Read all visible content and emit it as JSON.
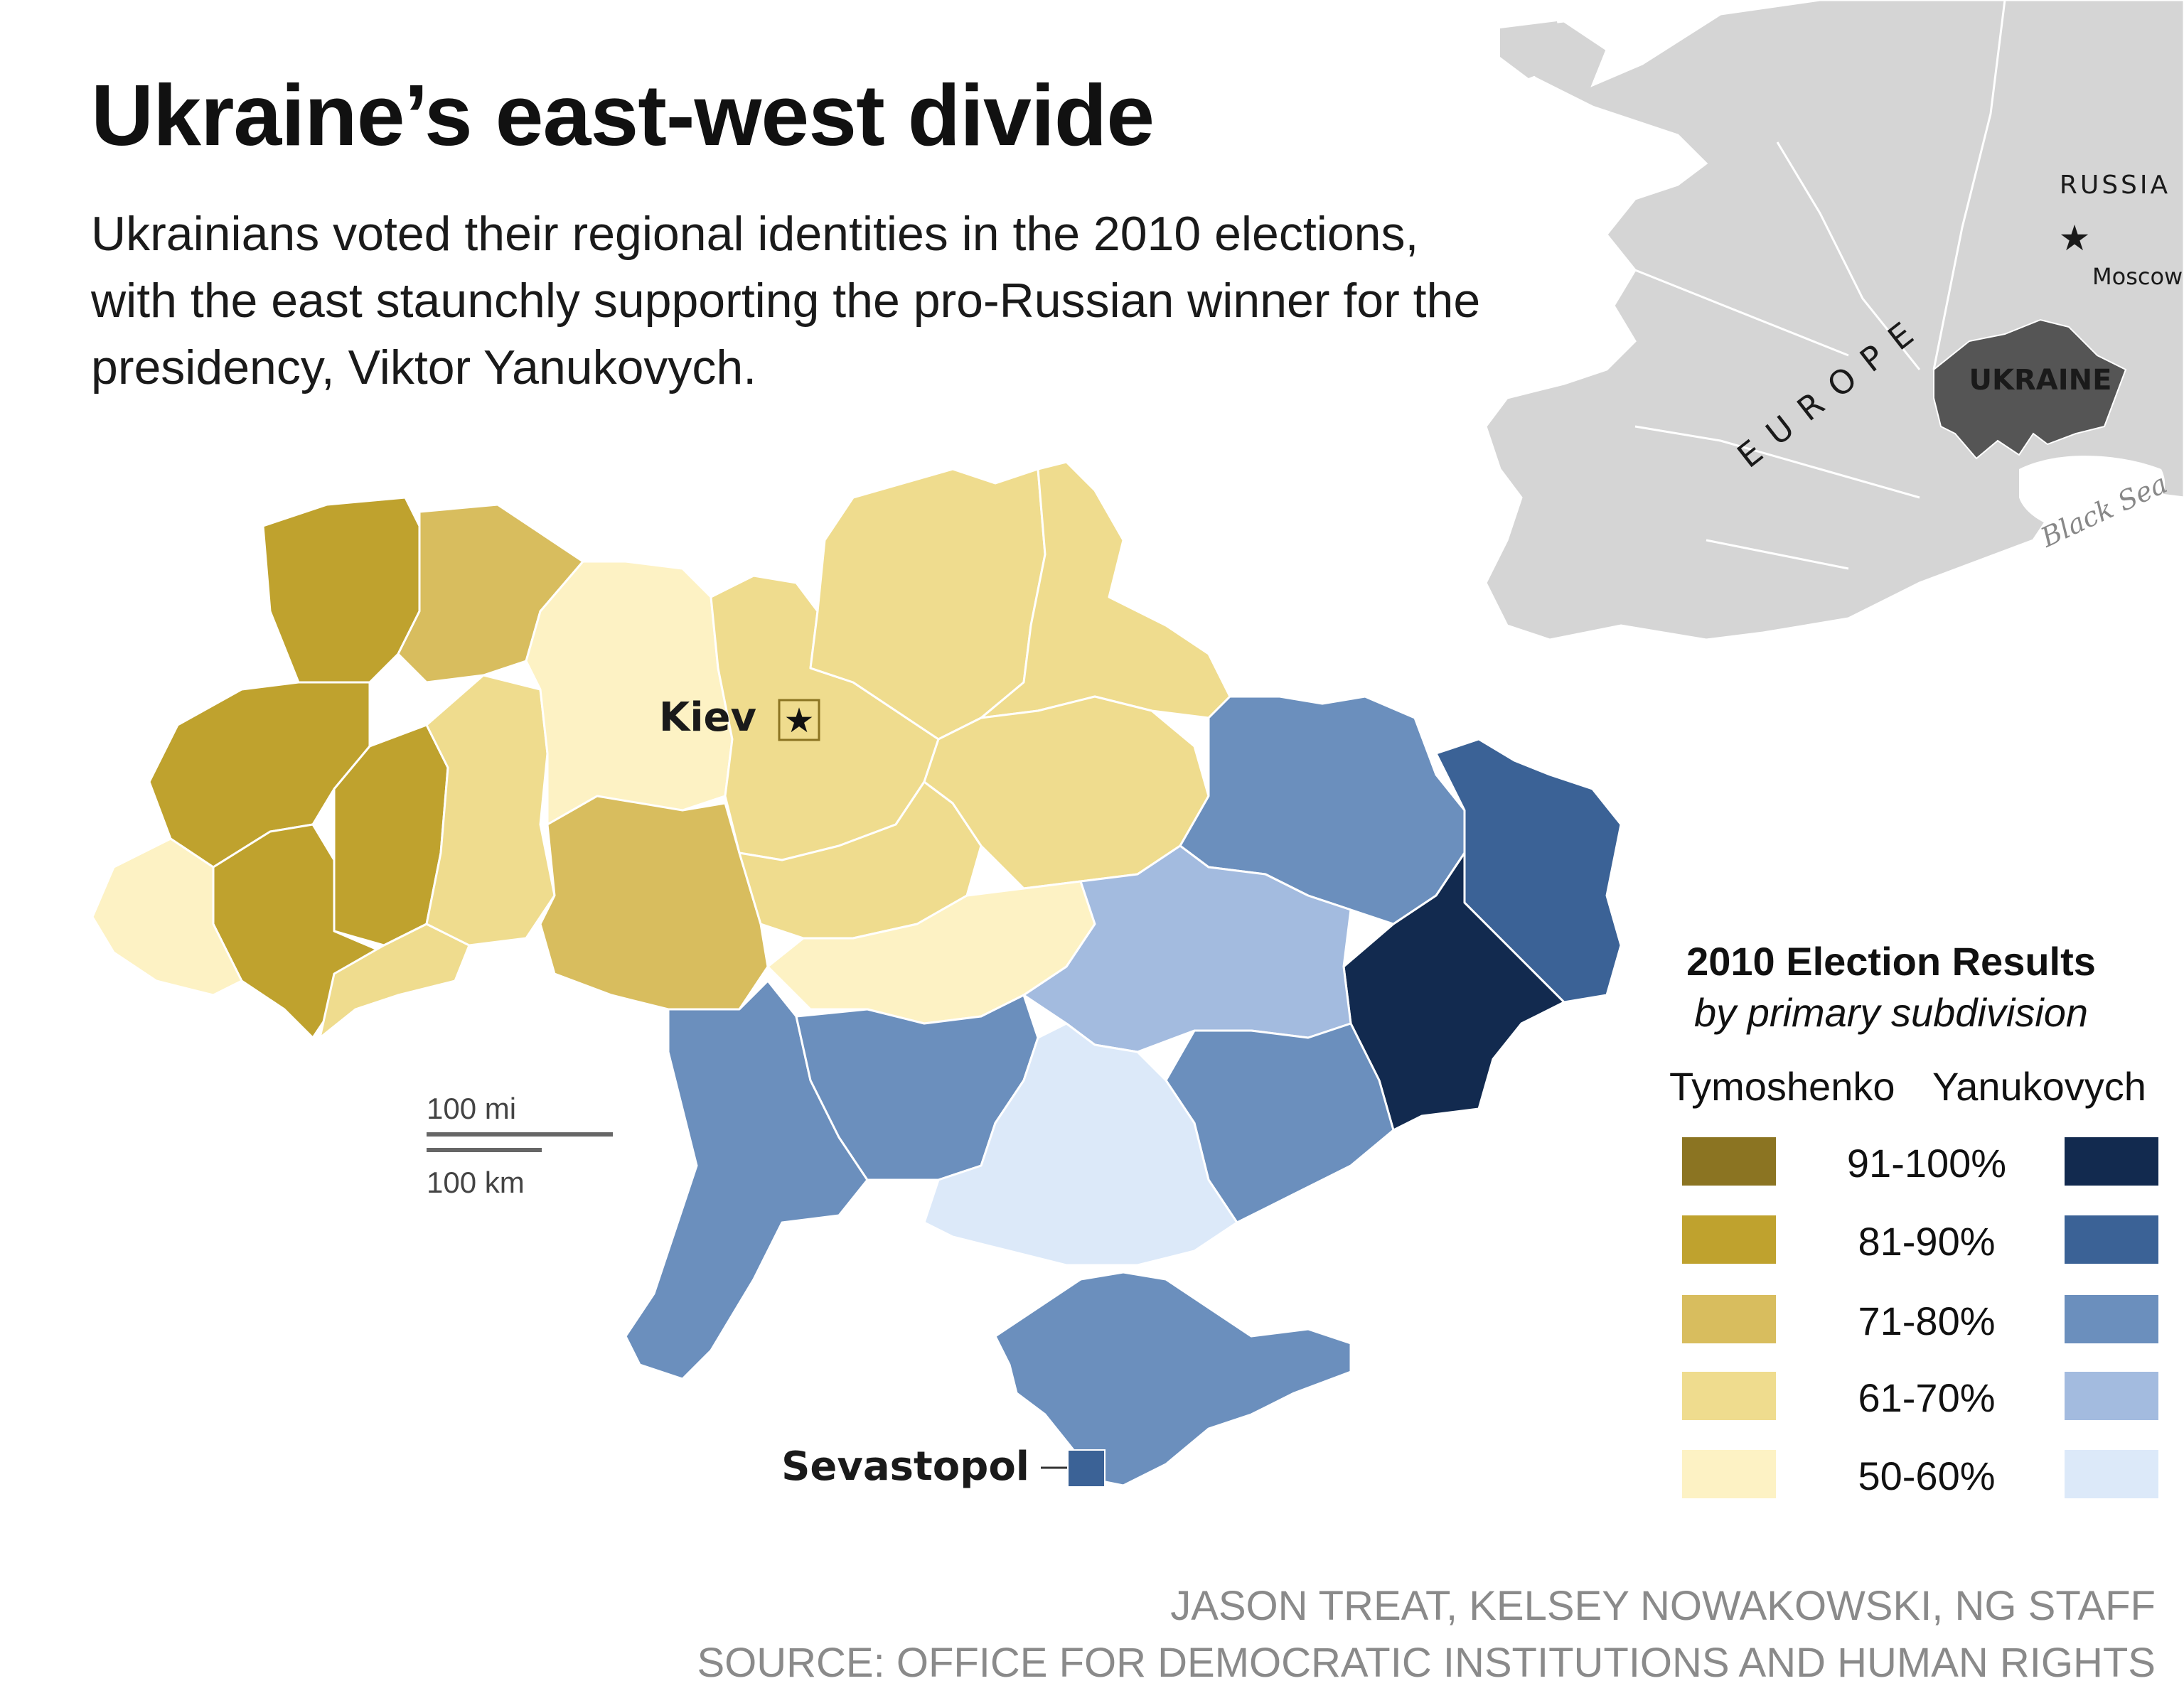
{
  "title": "Ukraine’s east-west divide",
  "subtitle": "Ukrainians voted their regional identities in the 2010 elections, with the east staunchly supporting the pro-Russian winner for the presidency, Viktor Yanukovych.",
  "inset": {
    "labels": {
      "russia": "RUSSIA",
      "moscow": "Moscow",
      "europe": "EUROPE",
      "ukraine": "UKRAINE",
      "black_sea": "Black Sea"
    },
    "colors": {
      "land": "#d5d5d5",
      "ukraine": "#555555"
    }
  },
  "map": {
    "cities": {
      "kiev": "Kiev",
      "sevastopol": "Sevastopol"
    },
    "scale": {
      "miles": "100 mi",
      "km": "100 km"
    }
  },
  "legend": {
    "title": "2010 Election Results",
    "subtitle": "by primary subdivision",
    "left_head": "Tymoshenko",
    "right_head": "Yanukovych",
    "ranges": [
      "91-100%",
      "81-90%",
      "71-80%",
      "61-70%",
      "50-60%"
    ],
    "tymoshenko_colors": [
      "#8b7422",
      "#bfa22e",
      "#d8bd5e",
      "#efdc8e",
      "#fdf2c4"
    ],
    "yanukovych_colors": [
      "#122a4f",
      "#3b6296",
      "#6b8fbd",
      "#a3bbdf",
      "#dce9f9"
    ]
  },
  "credits": {
    "authors": "JASON TREAT, KELSEY NOWAKOWSKI, NG STAFF",
    "source": "SOURCE: OFFICE FOR DEMOCRATIC INSTITUTIONS AND HUMAN RIGHTS"
  }
}
